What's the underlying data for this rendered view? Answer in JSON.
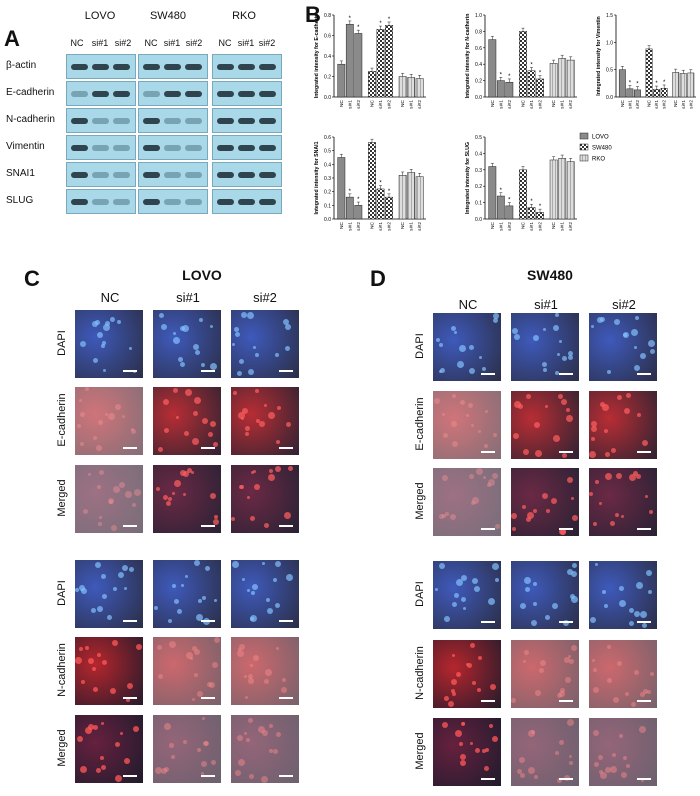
{
  "panel_a": {
    "letter": "A",
    "groups": [
      {
        "name": "LOVO",
        "lanes": [
          "NC",
          "si#1",
          "si#2"
        ]
      },
      {
        "name": "SW480",
        "lanes": [
          "NC",
          "si#1",
          "si#2"
        ]
      },
      {
        "name": "RKO",
        "lanes": [
          "NC",
          "si#1",
          "si#2"
        ]
      }
    ],
    "rows": [
      "β-actin",
      "E-cadherin",
      "N-cadherin",
      "Vimentin",
      "SNAI1",
      "SLUG"
    ]
  },
  "panel_b": {
    "letter": "B",
    "legend": [
      "LOVO",
      "SW480",
      "RKO"
    ],
    "tick_labels": [
      "NC",
      "si#1",
      "si#2"
    ]
  },
  "chart_data": [
    {
      "type": "bar",
      "ylabel": "Integrated intensity for E-cadherin",
      "ylim": [
        0,
        0.8
      ],
      "yticks": [
        0,
        0.2,
        0.4,
        0.6,
        0.8
      ],
      "series": [
        {
          "name": "LOVO",
          "values": [
            0.32,
            0.71,
            0.62
          ]
        },
        {
          "name": "SW480",
          "values": [
            0.25,
            0.66,
            0.7
          ]
        },
        {
          "name": "RKO",
          "values": [
            0.2,
            0.19,
            0.18
          ]
        }
      ],
      "stars": [
        [
          0,
          1
        ],
        [
          0,
          2
        ],
        [
          1,
          1
        ],
        [
          1,
          2
        ]
      ]
    },
    {
      "type": "bar",
      "ylabel": "Integrated intensity for N-cadherin",
      "ylim": [
        0,
        1.0
      ],
      "yticks": [
        0,
        0.2,
        0.4,
        0.6,
        0.8,
        1.0
      ],
      "series": [
        {
          "name": "LOVO",
          "values": [
            0.7,
            0.2,
            0.18
          ]
        },
        {
          "name": "SW480",
          "values": [
            0.8,
            0.32,
            0.22
          ]
        },
        {
          "name": "RKO",
          "values": [
            0.41,
            0.47,
            0.45
          ]
        }
      ],
      "stars": [
        [
          0,
          1
        ],
        [
          0,
          2
        ],
        [
          1,
          1
        ],
        [
          1,
          2
        ]
      ]
    },
    {
      "type": "bar",
      "ylabel": "Integrated intensity for Vimentin",
      "ylim": [
        0,
        1.5
      ],
      "yticks": [
        0,
        0.5,
        1.0,
        1.5
      ],
      "series": [
        {
          "name": "LOVO",
          "values": [
            0.5,
            0.15,
            0.13
          ]
        },
        {
          "name": "SW480",
          "values": [
            0.88,
            0.14,
            0.16
          ]
        },
        {
          "name": "RKO",
          "values": [
            0.45,
            0.43,
            0.44
          ]
        }
      ],
      "stars": [
        [
          0,
          1
        ],
        [
          0,
          2
        ],
        [
          1,
          1
        ],
        [
          1,
          2
        ]
      ]
    },
    {
      "type": "bar",
      "ylabel": "Integrated intensity for SNAI1",
      "ylim": [
        0,
        0.6
      ],
      "yticks": [
        0,
        0.1,
        0.2,
        0.3,
        0.4,
        0.5,
        0.6
      ],
      "series": [
        {
          "name": "LOVO",
          "values": [
            0.45,
            0.16,
            0.1
          ]
        },
        {
          "name": "SW480",
          "values": [
            0.56,
            0.22,
            0.16
          ]
        },
        {
          "name": "RKO",
          "values": [
            0.32,
            0.34,
            0.31
          ]
        }
      ],
      "stars": [
        [
          0,
          1
        ],
        [
          0,
          2
        ],
        [
          1,
          1
        ],
        [
          1,
          2
        ]
      ]
    },
    {
      "type": "bar",
      "ylabel": "Integrated intensity for SLUG",
      "ylim": [
        0,
        0.5
      ],
      "yticks": [
        0,
        0.1,
        0.2,
        0.3,
        0.4,
        0.5
      ],
      "series": [
        {
          "name": "LOVO",
          "values": [
            0.32,
            0.14,
            0.08
          ]
        },
        {
          "name": "SW480",
          "values": [
            0.3,
            0.07,
            0.04
          ]
        },
        {
          "name": "RKO",
          "values": [
            0.36,
            0.37,
            0.35
          ]
        }
      ],
      "stars": [
        [
          0,
          1
        ],
        [
          0,
          2
        ],
        [
          1,
          1
        ],
        [
          1,
          2
        ]
      ]
    }
  ],
  "panel_c": {
    "letter": "C",
    "title": "LOVO",
    "cols": [
      "NC",
      "si#1",
      "si#2"
    ],
    "rows": [
      "DAPI",
      "E-cadherin",
      "Merged",
      "DAPI",
      "N-cadherin",
      "Merged"
    ]
  },
  "panel_d": {
    "letter": "D",
    "title": "SW480",
    "cols": [
      "NC",
      "si#1",
      "si#2"
    ],
    "rows": [
      "DAPI",
      "E-cadherin",
      "Merged",
      "DAPI",
      "N-cadherin",
      "Merged"
    ]
  },
  "colors": {
    "blot_bg": "#a9d8e8",
    "dapi": "#1f3fb0",
    "red": "#b0141c",
    "merged": "#5a0f2e"
  }
}
